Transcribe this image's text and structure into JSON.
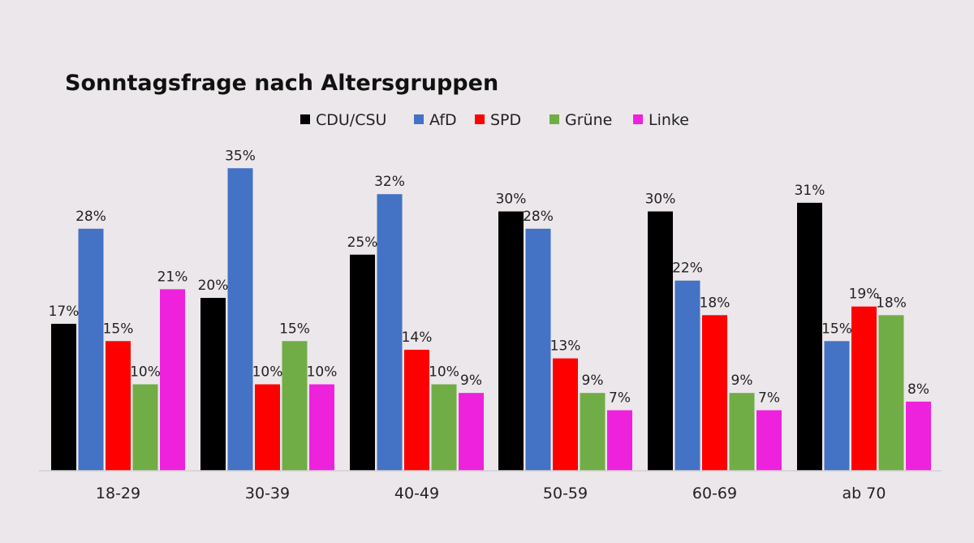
{
  "chart_data": {
    "type": "bar",
    "title": "Sonntagsfrage nach Altersgruppen",
    "xlabel": "",
    "ylabel": "",
    "ylim": [
      0,
      38
    ],
    "grid": false,
    "legend_position": "top",
    "value_suffix": "%",
    "categories": [
      "18-29",
      "30-39",
      "40-49",
      "50-59",
      "60-69",
      "ab 70"
    ],
    "series": [
      {
        "name": "CDU/CSU",
        "color": "#000000",
        "values": [
          17,
          20,
          25,
          30,
          30,
          31
        ]
      },
      {
        "name": "AfD",
        "color": "#4472c4",
        "values": [
          28,
          35,
          32,
          28,
          22,
          15
        ]
      },
      {
        "name": "SPD",
        "color": "#ff0000",
        "values": [
          15,
          10,
          14,
          13,
          18,
          19
        ]
      },
      {
        "name": "Grüne",
        "color": "#70ad47",
        "values": [
          10,
          15,
          10,
          9,
          9,
          18
        ]
      },
      {
        "name": "Linke",
        "color": "#ee22dd",
        "values": [
          21,
          10,
          9,
          7,
          7,
          8
        ]
      }
    ]
  }
}
